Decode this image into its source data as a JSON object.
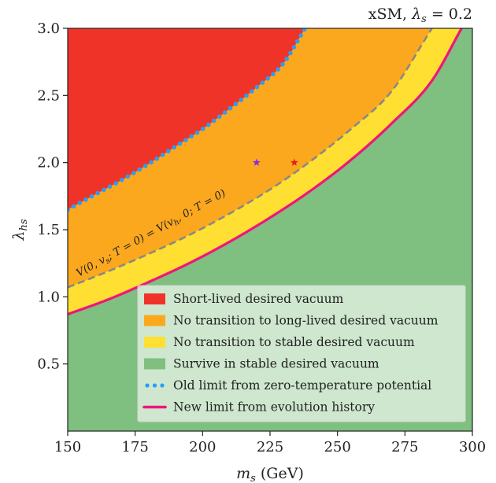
{
  "chart_data": {
    "type": "area",
    "title": "xSM, λ_s = 0.2",
    "xlabel": "m_s (GeV)",
    "ylabel": "λ_hs",
    "xlim": [
      150,
      300
    ],
    "ylim": [
      0.0,
      3.0
    ],
    "xticks": [
      150,
      175,
      200,
      225,
      250,
      275,
      300
    ],
    "yticks": [
      0.5,
      1.0,
      1.5,
      2.0,
      2.5,
      3.0
    ],
    "xtick_labels": [
      "150",
      "175",
      "200",
      "225",
      "250",
      "275",
      "300"
    ],
    "ytick_labels": [
      "0.5",
      "1.0",
      "1.5",
      "2.0",
      "2.5",
      "3.0"
    ],
    "grid": false,
    "legend_position": "lower-right",
    "colors": {
      "red": "#f03328",
      "orange": "#fba81e",
      "yellow": "#fedf32",
      "green": "#7fbf7f",
      "blue_dots": "#2a9df4",
      "magenta_line": "#f0157c",
      "dashed_line": "#888888",
      "purple_star": "#8a2be2",
      "red_star": "#e0241c"
    },
    "series": [
      {
        "name": "Old limit from zero-temperature potential",
        "style": "dotted",
        "x": [
          150,
          160,
          170,
          180,
          190,
          200,
          210,
          220,
          230,
          238
        ],
        "y": [
          1.65,
          1.76,
          1.87,
          1.99,
          2.12,
          2.25,
          2.4,
          2.56,
          2.74,
          3.0
        ]
      },
      {
        "name": "",
        "style": "dashed",
        "x": [
          150,
          165,
          180,
          195,
          210,
          225,
          240,
          255,
          270,
          285
        ],
        "y": [
          1.07,
          1.19,
          1.32,
          1.46,
          1.62,
          1.8,
          2.01,
          2.25,
          2.53,
          3.0
        ]
      },
      {
        "name": "New limit from evolution history",
        "style": "solid",
        "x": [
          150,
          165,
          180,
          195,
          210,
          225,
          240,
          255,
          270,
          285,
          296
        ],
        "y": [
          0.87,
          0.98,
          1.11,
          1.25,
          1.41,
          1.59,
          1.79,
          2.02,
          2.29,
          2.61,
          3.0
        ]
      }
    ],
    "regions": [
      {
        "name": "Short-lived desired vacuum",
        "color_key": "red"
      },
      {
        "name": "No transition to long-lived desired vacuum",
        "color_key": "orange"
      },
      {
        "name": "No transition to stable desired vacuum",
        "color_key": "yellow"
      },
      {
        "name": "Survive in stable desired vacuum",
        "color_key": "green"
      }
    ],
    "markers": [
      {
        "shape": "star",
        "color_key": "purple_star",
        "x": 220,
        "y": 2.0
      },
      {
        "shape": "star",
        "color_key": "red_star",
        "x": 234,
        "y": 2.0
      }
    ],
    "annotations": [
      {
        "text": "V(0,v_s;T=0) = V(v_h,0;T=0)",
        "along": "dashed"
      }
    ],
    "legend": [
      {
        "label": "Short-lived desired vacuum",
        "marker": "patch",
        "color_key": "red"
      },
      {
        "label": "No transition to long-lived desired vacuum",
        "marker": "patch",
        "color_key": "orange"
      },
      {
        "label": "No transition to stable desired vacuum",
        "marker": "patch",
        "color_key": "yellow"
      },
      {
        "label": "Survive in stable desired vacuum",
        "marker": "patch",
        "color_key": "green"
      },
      {
        "label": "Old limit from zero-temperature potential",
        "marker": "dots",
        "color_key": "blue_dots"
      },
      {
        "label": "New limit from evolution history",
        "marker": "line",
        "color_key": "magenta_line"
      }
    ]
  }
}
